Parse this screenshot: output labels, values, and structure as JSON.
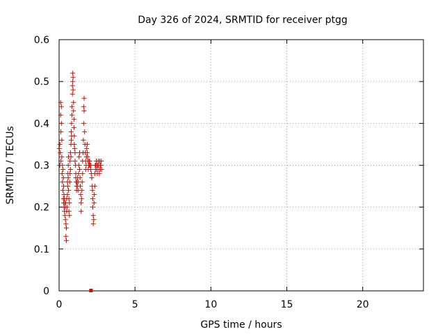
{
  "chart_data": {
    "type": "scatter",
    "title": "Day 326 of 2024, SRMTID for receiver ptgg",
    "xlabel": "GPS time / hours",
    "ylabel": "SRMTID / TECUs",
    "xlim": [
      0,
      24
    ],
    "ylim": [
      0,
      0.6
    ],
    "xticks": [
      0,
      5,
      10,
      15,
      20
    ],
    "xtick_labels": [
      "0",
      "5",
      "10",
      "15",
      "20"
    ],
    "yticks": [
      0,
      0.1,
      0.2,
      0.3,
      0.4,
      0.5,
      0.6
    ],
    "ytick_labels": [
      "0",
      "0.1",
      "0.2",
      "0.3",
      "0.4",
      "0.5",
      "0.6"
    ],
    "grid": true,
    "marker": "plus",
    "color": "#e00000",
    "points": [
      [
        0.02,
        0.34
      ],
      [
        0.05,
        0.35
      ],
      [
        0.05,
        0.3
      ],
      [
        0.08,
        0.33
      ],
      [
        0.1,
        0.45
      ],
      [
        0.1,
        0.42
      ],
      [
        0.12,
        0.38
      ],
      [
        0.12,
        0.31
      ],
      [
        0.15,
        0.44
      ],
      [
        0.15,
        0.4
      ],
      [
        0.18,
        0.36
      ],
      [
        0.18,
        0.32
      ],
      [
        0.2,
        0.28
      ],
      [
        0.22,
        0.3
      ],
      [
        0.22,
        0.26
      ],
      [
        0.25,
        0.29
      ],
      [
        0.25,
        0.24
      ],
      [
        0.28,
        0.27
      ],
      [
        0.28,
        0.22
      ],
      [
        0.3,
        0.25
      ],
      [
        0.3,
        0.21
      ],
      [
        0.32,
        0.23
      ],
      [
        0.32,
        0.2
      ],
      [
        0.35,
        0.22
      ],
      [
        0.35,
        0.19
      ],
      [
        0.38,
        0.21
      ],
      [
        0.38,
        0.18
      ],
      [
        0.4,
        0.2
      ],
      [
        0.42,
        0.17
      ],
      [
        0.42,
        0.21
      ],
      [
        0.45,
        0.16
      ],
      [
        0.45,
        0.13
      ],
      [
        0.48,
        0.15
      ],
      [
        0.48,
        0.12
      ],
      [
        0.5,
        0.19
      ],
      [
        0.5,
        0.22
      ],
      [
        0.52,
        0.2
      ],
      [
        0.55,
        0.23
      ],
      [
        0.55,
        0.26
      ],
      [
        0.58,
        0.25
      ],
      [
        0.58,
        0.28
      ],
      [
        0.6,
        0.27
      ],
      [
        0.6,
        0.3
      ],
      [
        0.62,
        0.32
      ],
      [
        0.62,
        0.24
      ],
      [
        0.65,
        0.22
      ],
      [
        0.65,
        0.19
      ],
      [
        0.68,
        0.21
      ],
      [
        0.68,
        0.18
      ],
      [
        0.7,
        0.26
      ],
      [
        0.72,
        0.28
      ],
      [
        0.72,
        0.31
      ],
      [
        0.75,
        0.33
      ],
      [
        0.75,
        0.29
      ],
      [
        0.78,
        0.35
      ],
      [
        0.78,
        0.32
      ],
      [
        0.8,
        0.36
      ],
      [
        0.8,
        0.38
      ],
      [
        0.82,
        0.4
      ],
      [
        0.82,
        0.37
      ],
      [
        0.85,
        0.42
      ],
      [
        0.85,
        0.44
      ],
      [
        0.88,
        0.47
      ],
      [
        0.88,
        0.49
      ],
      [
        0.9,
        0.5
      ],
      [
        0.9,
        0.52
      ],
      [
        0.92,
        0.51
      ],
      [
        0.92,
        0.48
      ],
      [
        0.95,
        0.45
      ],
      [
        0.95,
        0.43
      ],
      [
        0.98,
        0.41
      ],
      [
        0.98,
        0.39
      ],
      [
        1.0,
        0.37
      ],
      [
        1.0,
        0.35
      ],
      [
        1.02,
        0.34
      ],
      [
        1.05,
        0.33
      ],
      [
        1.05,
        0.31
      ],
      [
        1.08,
        0.3
      ],
      [
        1.1,
        0.28
      ],
      [
        1.1,
        0.27
      ],
      [
        1.12,
        0.26
      ],
      [
        1.15,
        0.25
      ],
      [
        1.15,
        0.24
      ],
      [
        1.18,
        0.26
      ],
      [
        1.2,
        0.25
      ],
      [
        1.22,
        0.27
      ],
      [
        1.25,
        0.24
      ],
      [
        1.25,
        0.26
      ],
      [
        1.28,
        0.28
      ],
      [
        1.3,
        0.3
      ],
      [
        1.32,
        0.32
      ],
      [
        1.35,
        0.33
      ],
      [
        1.35,
        0.29
      ],
      [
        1.38,
        0.27
      ],
      [
        1.4,
        0.25
      ],
      [
        1.42,
        0.23
      ],
      [
        1.45,
        0.21
      ],
      [
        1.45,
        0.19
      ],
      [
        1.48,
        0.22
      ],
      [
        1.5,
        0.24
      ],
      [
        1.52,
        0.26
      ],
      [
        1.55,
        0.28
      ],
      [
        1.55,
        0.31
      ],
      [
        1.58,
        0.33
      ],
      [
        1.6,
        0.36
      ],
      [
        1.62,
        0.4
      ],
      [
        1.62,
        0.44
      ],
      [
        1.65,
        0.46
      ],
      [
        1.65,
        0.43
      ],
      [
        1.68,
        0.38
      ],
      [
        1.7,
        0.35
      ],
      [
        1.72,
        0.33
      ],
      [
        1.75,
        0.31
      ],
      [
        1.75,
        0.29
      ],
      [
        1.78,
        0.3
      ],
      [
        1.8,
        0.32
      ],
      [
        1.82,
        0.34
      ],
      [
        1.85,
        0.35
      ],
      [
        1.85,
        0.33
      ],
      [
        1.88,
        0.32
      ],
      [
        1.9,
        0.31
      ],
      [
        1.92,
        0.29
      ],
      [
        1.95,
        0.3
      ],
      [
        1.98,
        0.31
      ],
      [
        2.0,
        0.3
      ],
      [
        2.02,
        0.31
      ],
      [
        2.05,
        0.3
      ],
      [
        2.08,
        0.29
      ],
      [
        2.1,
        0.3
      ],
      [
        2.12,
        0.28
      ],
      [
        2.15,
        0.27
      ],
      [
        2.18,
        0.25
      ],
      [
        2.2,
        0.24
      ],
      [
        2.22,
        0.22
      ],
      [
        2.22,
        0.2
      ],
      [
        2.25,
        0.18
      ],
      [
        2.25,
        0.16
      ],
      [
        2.28,
        0.17
      ],
      [
        2.3,
        0.21
      ],
      [
        2.32,
        0.23
      ],
      [
        2.35,
        0.25
      ],
      [
        2.35,
        0.28
      ],
      [
        2.38,
        0.3
      ],
      [
        2.4,
        0.29
      ],
      [
        2.42,
        0.3
      ],
      [
        2.45,
        0.31
      ],
      [
        2.48,
        0.3
      ],
      [
        2.5,
        0.29
      ],
      [
        2.52,
        0.28
      ],
      [
        2.55,
        0.3
      ],
      [
        2.58,
        0.31
      ],
      [
        2.6,
        0.3
      ],
      [
        2.62,
        0.29
      ],
      [
        2.65,
        0.28
      ],
      [
        2.68,
        0.31
      ],
      [
        2.7,
        0.3
      ],
      [
        2.72,
        0.29
      ],
      [
        2.75,
        0.3
      ],
      [
        2.78,
        0.31
      ],
      [
        2.8,
        0.29
      ]
    ],
    "special_marks": [
      {
        "x": 2.1,
        "y": 0.0,
        "marker": "square"
      }
    ]
  }
}
